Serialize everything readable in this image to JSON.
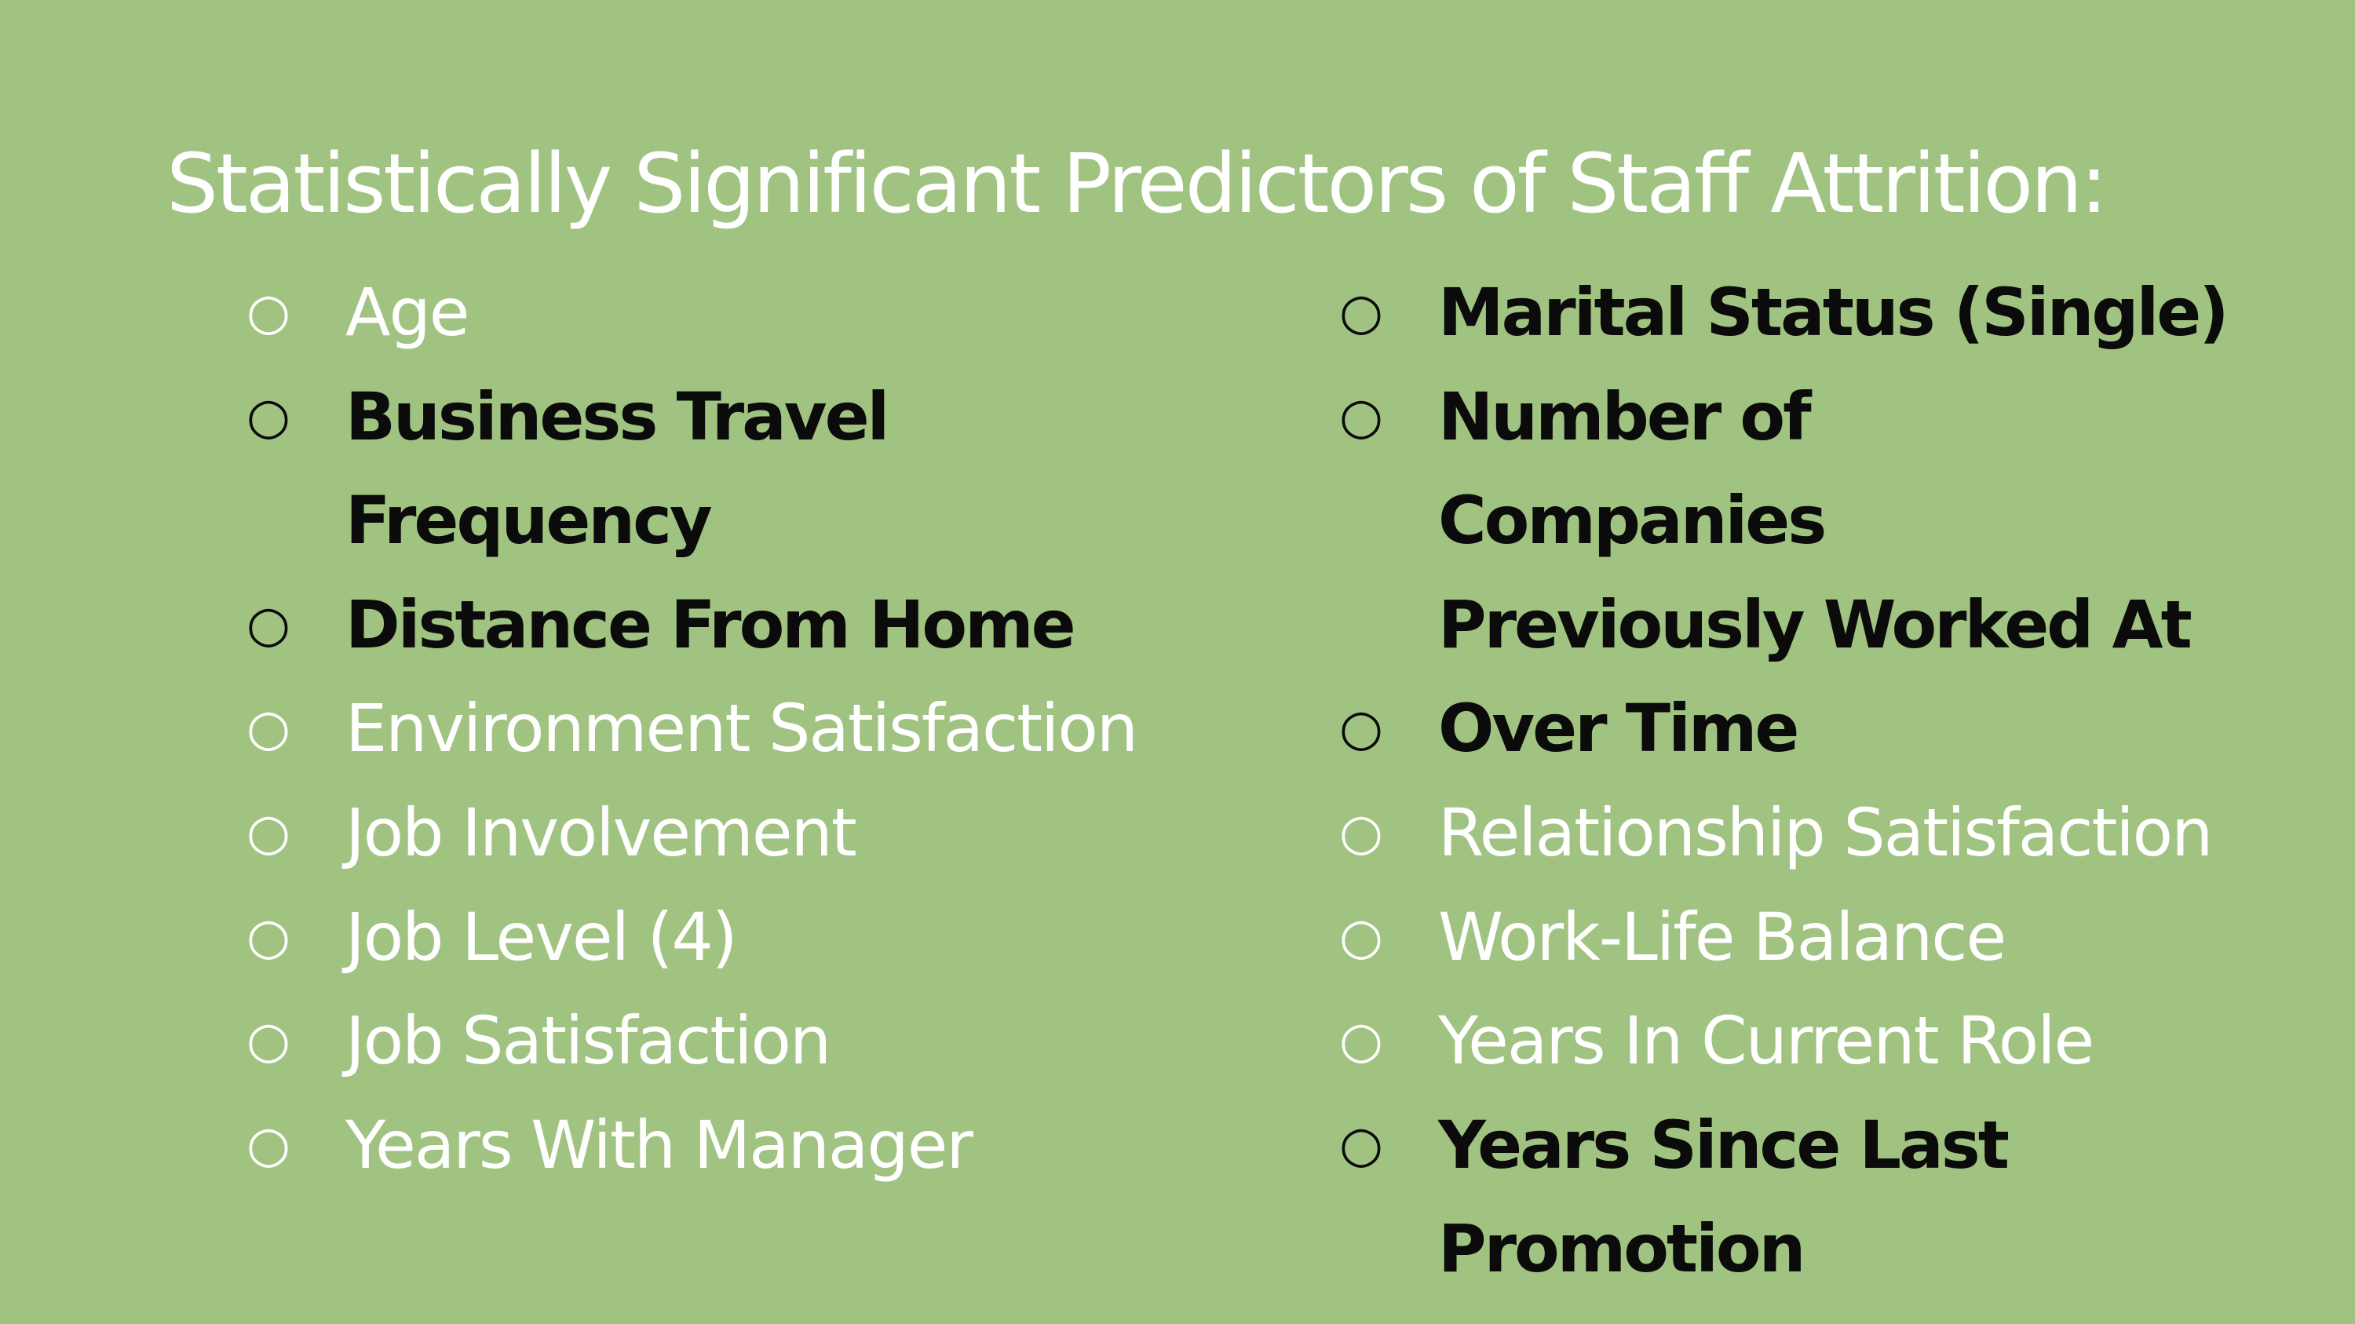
{
  "title": "Statistically Significant Predictors of Staff Attrition:",
  "bullet_glyph": "○",
  "colors": {
    "background": "#a1c381",
    "plain_text": "#ffffff",
    "highlight_text": "#0b0b0b"
  },
  "left_column": [
    {
      "label": "Age",
      "highlight": false
    },
    {
      "label": "Business Travel Frequency",
      "highlight": true
    },
    {
      "label": "Distance From Home",
      "highlight": true
    },
    {
      "label": "Environment Satisfaction",
      "highlight": false
    },
    {
      "label": "Job Involvement",
      "highlight": false
    },
    {
      "label": "Job Level (4)",
      "highlight": false
    },
    {
      "label": "Job Satisfaction",
      "highlight": false
    },
    {
      "label": "Years With Manager",
      "highlight": false
    }
  ],
  "right_column": [
    {
      "label": "Marital Status (Single)",
      "highlight": true
    },
    {
      "label": "Number of Companies Previously Worked At",
      "highlight": true
    },
    {
      "label": "Over Time",
      "highlight": true
    },
    {
      "label": "Relationship Satisfaction",
      "highlight": false
    },
    {
      "label": "Work-Life Balance",
      "highlight": false
    },
    {
      "label": "Years In Current Role",
      "highlight": false
    },
    {
      "label": "Years Since Last Promotion",
      "highlight": true
    }
  ]
}
